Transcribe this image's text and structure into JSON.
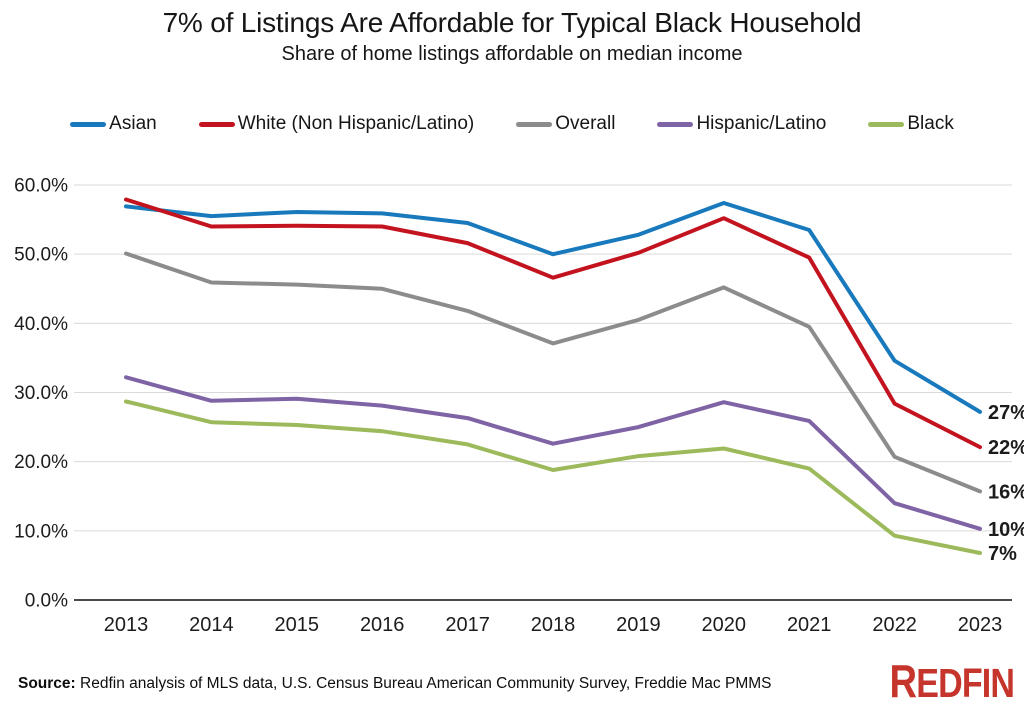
{
  "chart_data": {
    "type": "line",
    "title": "7% of Listings Are Affordable for Typical Black Household",
    "subtitle": "Share of home listings affordable on median income",
    "x": [
      "2013",
      "2014",
      "2015",
      "2016",
      "2017",
      "2018",
      "2019",
      "2020",
      "2021",
      "2022",
      "2023"
    ],
    "ylim": [
      0,
      60
    ],
    "grid": "horizontal",
    "legend_position": "top",
    "yticks": [
      {
        "value": 0,
        "label": "0.0%"
      },
      {
        "value": 10,
        "label": "10.0%"
      },
      {
        "value": 20,
        "label": "20.0%"
      },
      {
        "value": 30,
        "label": "30.0%"
      },
      {
        "value": 40,
        "label": "40.0%"
      },
      {
        "value": 50,
        "label": "50.0%"
      },
      {
        "value": 60,
        "label": "60.0%"
      }
    ],
    "series": [
      {
        "key": "asian",
        "name": "Asian",
        "color": "#1879BD",
        "end_label": "27%",
        "values": [
          56.9,
          55.5,
          56.1,
          55.9,
          54.5,
          50.0,
          52.8,
          57.4,
          53.5,
          34.6,
          27.2
        ]
      },
      {
        "key": "white-non-hispanic-latino",
        "name": "White (Non Hispanic/Latino)",
        "color": "#C3131F",
        "end_label": "22%",
        "values": [
          57.9,
          54.0,
          54.1,
          54.0,
          51.6,
          46.6,
          50.2,
          55.2,
          49.5,
          28.4,
          22.1
        ]
      },
      {
        "key": "overall",
        "name": "Overall",
        "color": "#8C8C8C",
        "end_label": "16%",
        "values": [
          50.1,
          45.9,
          45.6,
          45.0,
          41.8,
          37.1,
          40.5,
          45.2,
          39.5,
          20.7,
          15.7
        ]
      },
      {
        "key": "hispanic-latino",
        "name": "Hispanic/Latino",
        "color": "#7E63A5",
        "end_label": "10%",
        "values": [
          32.2,
          28.8,
          29.1,
          28.1,
          26.3,
          22.6,
          25.0,
          28.6,
          25.9,
          14.0,
          10.3
        ]
      },
      {
        "key": "black",
        "name": "Black",
        "color": "#9CBA5B",
        "end_label": "7%",
        "values": [
          28.7,
          25.7,
          25.3,
          24.4,
          22.5,
          18.8,
          20.8,
          21.9,
          19.0,
          9.3,
          6.8
        ]
      }
    ],
    "style": {
      "grid_color": "#DADADA",
      "axis_color": "#4A4A4A",
      "line_width": 4
    }
  },
  "footer": {
    "source_label": "Source:",
    "source_text": " Redfin analysis of MLS data, U.S. Census Bureau American Community Survey, Freddie Mac PMMS",
    "logo_text": "Redfin",
    "logo_color": "#C5352C"
  }
}
